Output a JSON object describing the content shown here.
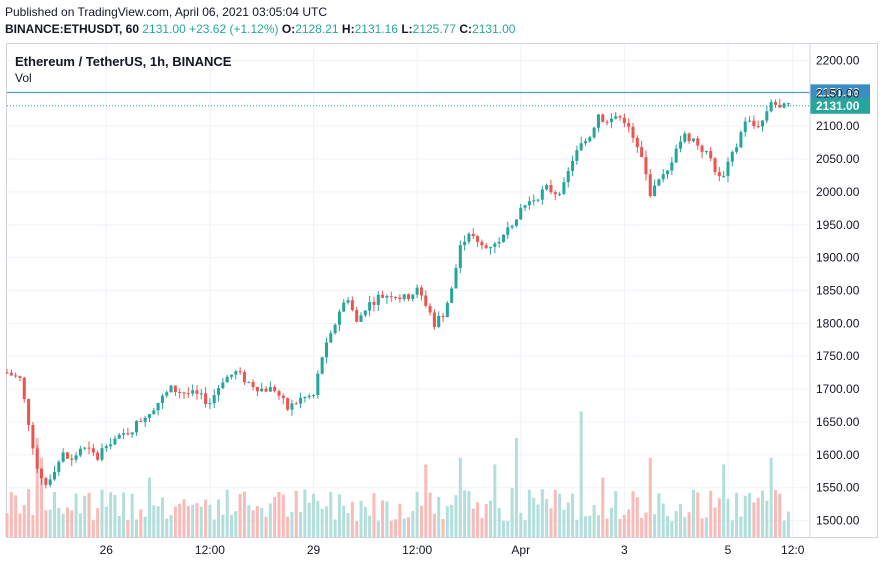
{
  "header": {
    "published": "Published on TradingView.com, April 06, 2021 03:05:04 UTC",
    "symbol": "BINANCE:ETHUSDT, 60",
    "last": "2131.00",
    "change": "+23.62 (+1.12%)",
    "o_label": "O:",
    "o_value": "2128.21",
    "h_label": "H:",
    "h_value": "2131.16",
    "l_label": "L:",
    "l_value": "2125.77",
    "c_label": "C:",
    "c_value": "2131.00"
  },
  "legend": {
    "title": "Ethereum / TetherUS, 1h, BINANCE",
    "volume": "Vol"
  },
  "colors": {
    "up": "#26a69a",
    "down": "#ef5350",
    "up_volume": "#b2dfdb",
    "down_volume": "#f8bbb8",
    "grid": "#f0f3fa",
    "high_line": "#3a8ec6",
    "last_line": "#26a69a"
  },
  "chart_data": {
    "type": "candlestick",
    "title": "Ethereum / TetherUS, 1h, BINANCE",
    "grid": true,
    "ylim": [
      1475,
      2225
    ],
    "y_ticks": [
      1500,
      1550,
      1600,
      1650,
      1700,
      1750,
      1800,
      1850,
      1900,
      1950,
      2000,
      2050,
      2100,
      2150,
      2200
    ],
    "x_ticks": [
      {
        "label": "26",
        "t": 23
      },
      {
        "label": "12:00",
        "t": 47
      },
      {
        "label": "29",
        "t": 71
      },
      {
        "label": "12:00",
        "t": 95
      },
      {
        "label": "Apr",
        "t": 119
      },
      {
        "label": "3",
        "t": 143
      },
      {
        "label": "5",
        "t": 167
      },
      {
        "label": "12:0",
        "t": 182
      }
    ],
    "x_range": [
      0,
      186
    ],
    "price_lines": [
      {
        "name": "high",
        "value": 2151.46,
        "label": "2151.46"
      },
      {
        "name": "last",
        "value": 2131.0,
        "label": "2131.00"
      }
    ],
    "price_path": [
      {
        "t": 0,
        "p": 1725
      },
      {
        "t": 3,
        "p": 1715
      },
      {
        "t": 5,
        "p": 1650
      },
      {
        "t": 7,
        "p": 1580
      },
      {
        "t": 9,
        "p": 1555
      },
      {
        "t": 11,
        "p": 1580
      },
      {
        "t": 13,
        "p": 1600
      },
      {
        "t": 15,
        "p": 1590
      },
      {
        "t": 17,
        "p": 1610
      },
      {
        "t": 19,
        "p": 1605
      },
      {
        "t": 21,
        "p": 1595
      },
      {
        "t": 23,
        "p": 1620
      },
      {
        "t": 26,
        "p": 1625
      },
      {
        "t": 29,
        "p": 1640
      },
      {
        "t": 32,
        "p": 1660
      },
      {
        "t": 35,
        "p": 1680
      },
      {
        "t": 38,
        "p": 1700
      },
      {
        "t": 41,
        "p": 1695
      },
      {
        "t": 44,
        "p": 1690
      },
      {
        "t": 47,
        "p": 1680
      },
      {
        "t": 50,
        "p": 1715
      },
      {
        "t": 53,
        "p": 1725
      },
      {
        "t": 56,
        "p": 1710
      },
      {
        "t": 59,
        "p": 1700
      },
      {
        "t": 62,
        "p": 1700
      },
      {
        "t": 65,
        "p": 1670
      },
      {
        "t": 68,
        "p": 1685
      },
      {
        "t": 71,
        "p": 1690
      },
      {
        "t": 73,
        "p": 1750
      },
      {
        "t": 75,
        "p": 1780
      },
      {
        "t": 77,
        "p": 1820
      },
      {
        "t": 79,
        "p": 1840
      },
      {
        "t": 81,
        "p": 1800
      },
      {
        "t": 83,
        "p": 1825
      },
      {
        "t": 86,
        "p": 1840
      },
      {
        "t": 89,
        "p": 1845
      },
      {
        "t": 92,
        "p": 1838
      },
      {
        "t": 95,
        "p": 1850
      },
      {
        "t": 97,
        "p": 1830
      },
      {
        "t": 99,
        "p": 1800
      },
      {
        "t": 101,
        "p": 1815
      },
      {
        "t": 103,
        "p": 1850
      },
      {
        "t": 105,
        "p": 1920
      },
      {
        "t": 107,
        "p": 1940
      },
      {
        "t": 109,
        "p": 1920
      },
      {
        "t": 111,
        "p": 1915
      },
      {
        "t": 113,
        "p": 1925
      },
      {
        "t": 115,
        "p": 1930
      },
      {
        "t": 117,
        "p": 1955
      },
      {
        "t": 119,
        "p": 1975
      },
      {
        "t": 121,
        "p": 1985
      },
      {
        "t": 123,
        "p": 1995
      },
      {
        "t": 125,
        "p": 2005
      },
      {
        "t": 127,
        "p": 2000
      },
      {
        "t": 129,
        "p": 2008
      },
      {
        "t": 131,
        "p": 2050
      },
      {
        "t": 133,
        "p": 2070
      },
      {
        "t": 135,
        "p": 2085
      },
      {
        "t": 137,
        "p": 2120
      },
      {
        "t": 139,
        "p": 2105
      },
      {
        "t": 141,
        "p": 2115
      },
      {
        "t": 143,
        "p": 2110
      },
      {
        "t": 145,
        "p": 2080
      },
      {
        "t": 147,
        "p": 2050
      },
      {
        "t": 149,
        "p": 2000
      },
      {
        "t": 151,
        "p": 2015
      },
      {
        "t": 153,
        "p": 2030
      },
      {
        "t": 155,
        "p": 2070
      },
      {
        "t": 157,
        "p": 2085
      },
      {
        "t": 159,
        "p": 2080
      },
      {
        "t": 161,
        "p": 2065
      },
      {
        "t": 163,
        "p": 2050
      },
      {
        "t": 165,
        "p": 2020
      },
      {
        "t": 167,
        "p": 2040
      },
      {
        "t": 169,
        "p": 2070
      },
      {
        "t": 171,
        "p": 2110
      },
      {
        "t": 173,
        "p": 2100
      },
      {
        "t": 175,
        "p": 2108
      },
      {
        "t": 177,
        "p": 2140
      },
      {
        "t": 179,
        "p": 2125
      },
      {
        "t": 181,
        "p": 2131
      }
    ],
    "volume_max": 1,
    "volume_spikes": [
      {
        "t": 7,
        "v": 0.75
      },
      {
        "t": 8,
        "v": 0.6
      },
      {
        "t": 33,
        "v": 0.45
      },
      {
        "t": 97,
        "v": 0.55
      },
      {
        "t": 105,
        "v": 0.6
      },
      {
        "t": 113,
        "v": 0.55
      },
      {
        "t": 118,
        "v": 0.75
      },
      {
        "t": 133,
        "v": 0.95
      },
      {
        "t": 138,
        "v": 0.45
      },
      {
        "t": 149,
        "v": 0.6
      },
      {
        "t": 166,
        "v": 0.55
      },
      {
        "t": 177,
        "v": 0.6
      }
    ]
  }
}
